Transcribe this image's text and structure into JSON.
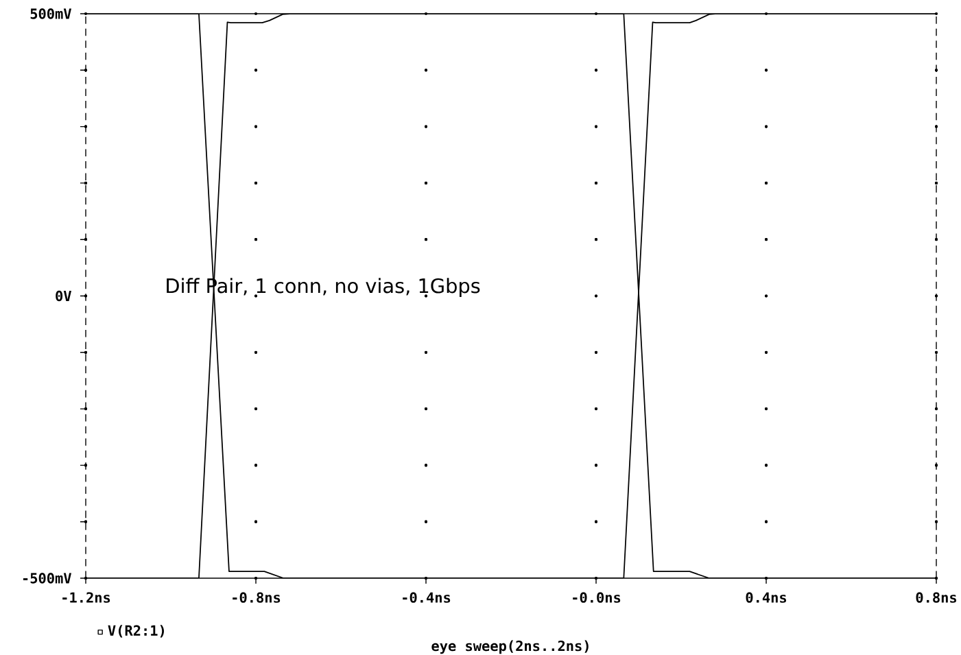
{
  "chart_data": {
    "type": "line",
    "xlabel": "eye sweep(2ns..2ns)",
    "annotations": [
      "Diff Pair, 1 conn, no vias, 1Gbps"
    ],
    "xlim": [
      -1.2,
      0.8
    ],
    "xticks": [
      {
        "value": -1.2,
        "label": "-1.2ns"
      },
      {
        "value": -0.8,
        "label": "-0.8ns"
      },
      {
        "value": -0.4,
        "label": "-0.4ns"
      },
      {
        "value": 0,
        "label": "-0.0ns"
      },
      {
        "value": 0.4,
        "label": "0.4ns"
      },
      {
        "value": 0.8,
        "label": "0.8ns"
      }
    ],
    "ylim": [
      -500,
      500
    ],
    "yticks": [
      {
        "value": -500,
        "label": "-500mV"
      },
      {
        "value": -400,
        "label": null
      },
      {
        "value": -300,
        "label": null
      },
      {
        "value": -200,
        "label": null
      },
      {
        "value": -100,
        "label": null
      },
      {
        "value": 0,
        "label": "0V"
      },
      {
        "value": 100,
        "label": null
      },
      {
        "value": 200,
        "label": null
      },
      {
        "value": 300,
        "label": null
      },
      {
        "value": 400,
        "label": null
      },
      {
        "value": 500,
        "label": "500mV"
      }
    ],
    "grid": true,
    "legend": "bottom",
    "marker": "none",
    "line_style": "solid",
    "series": [
      {
        "name": "V(R2:1)",
        "color": "#000000",
        "x": [
          -1.2,
          -0.934,
          -0.867,
          -0.859,
          -0.785,
          -0.768,
          -0.737,
          -0.72,
          0.065,
          0.135,
          0.22,
          0.235,
          0.266,
          0.8
        ],
        "values": [
          -500,
          -500,
          485,
          484,
          484,
          488,
          499,
          500,
          500,
          -488,
          -488,
          -492,
          -500,
          -500
        ]
      },
      {
        "color": "#000000",
        "x": [
          -1.2,
          -0.934,
          -0.863,
          -0.855,
          -0.78,
          -0.765,
          -0.735,
          0.065,
          0.133,
          0.14,
          0.22,
          0.235,
          0.266,
          0.28,
          0.8
        ],
        "values": [
          500,
          500,
          -488,
          -488,
          -488,
          -492,
          -500,
          -500,
          485,
          484,
          484,
          488,
          499,
          500,
          500
        ]
      }
    ]
  }
}
